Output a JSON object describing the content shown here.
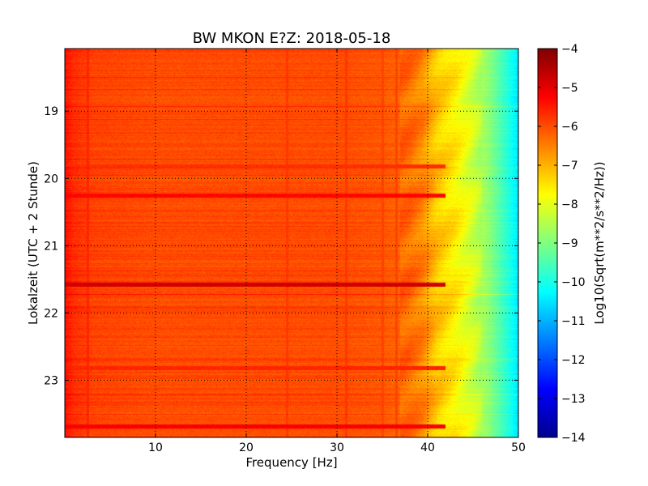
{
  "chart_data": {
    "type": "heatmap",
    "title": "BW MKON E?Z: 2018-05-18",
    "xlabel": "Frequency [Hz]",
    "ylabel": "Lokalzeit (UTC + 2 Stunde)",
    "xlim": [
      0,
      50
    ],
    "ylim": [
      23.85,
      18.07
    ],
    "x_ticks": [
      10,
      20,
      30,
      40,
      50
    ],
    "y_ticks": [
      19,
      20,
      21,
      22,
      23
    ],
    "grid": true,
    "colormap": "jet",
    "colorbar": {
      "label": "Log10(Sqrt(m**2/s**2/Hz))",
      "range": [
        -14,
        -4
      ],
      "ticks": [
        -4,
        -5,
        -6,
        -7,
        -8,
        -9,
        -10,
        -11,
        -12,
        -13,
        -14
      ]
    },
    "spectrum_profile": [
      {
        "freq": 0,
        "value": -5.4
      },
      {
        "freq": 1,
        "value": -5.7
      },
      {
        "freq": 3,
        "value": -5.9
      },
      {
        "freq": 10,
        "value": -6.0
      },
      {
        "freq": 20,
        "value": -6.0
      },
      {
        "freq": 30,
        "value": -6.0
      },
      {
        "freq": 35,
        "value": -6.1
      },
      {
        "freq": 38,
        "value": -6.3
      },
      {
        "freq": 39.5,
        "value": -6.6
      },
      {
        "freq": 41,
        "value": -7.2
      },
      {
        "freq": 43,
        "value": -7.6
      },
      {
        "freq": 45,
        "value": -8.2
      },
      {
        "freq": 47,
        "value": -9.0
      },
      {
        "freq": 49,
        "value": -10.0
      },
      {
        "freq": 50,
        "value": -10.5
      }
    ],
    "strong_bands": [
      {
        "time": 20.25,
        "value": -5.3
      },
      {
        "time": 21.58,
        "value": -4.8
      },
      {
        "time": 23.68,
        "value": -5.2
      },
      {
        "time": 22.82,
        "value": -5.6
      },
      {
        "time": 19.82,
        "value": -5.7
      }
    ],
    "vertical_lines": [
      {
        "freq": 2.5,
        "value": -5.6
      },
      {
        "freq": 24.5,
        "value": -5.8
      },
      {
        "freq": 31.0,
        "value": -5.8
      },
      {
        "freq": 35.0,
        "value": -5.9
      },
      {
        "freq": 36.5,
        "value": -5.9
      }
    ]
  }
}
